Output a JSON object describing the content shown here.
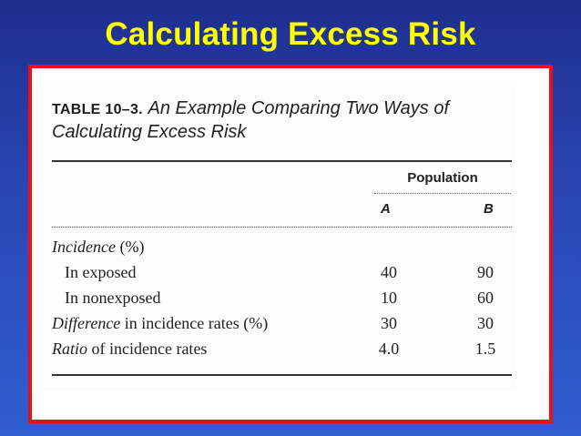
{
  "slide": {
    "title": "Calculating Excess Risk"
  },
  "table": {
    "label": "TABLE 10–3.",
    "caption_line1": "An Example Comparing Two Ways of",
    "caption_line2": "Calculating Excess Risk",
    "group_header": "Population",
    "columns": [
      "A",
      "B"
    ],
    "rows": [
      {
        "label_em": "Incidence",
        "label_rest": " (%)",
        "a": "",
        "b": ""
      },
      {
        "label_em": "",
        "label_rest": "In exposed",
        "a": "40",
        "b": "90"
      },
      {
        "label_em": "",
        "label_rest": "In nonexposed",
        "a": "10",
        "b": "60"
      },
      {
        "label_em": "Difference",
        "label_rest": " in incidence rates (%)",
        "a": "30",
        "b": "30"
      },
      {
        "label_em": "Ratio",
        "label_rest": " of incidence rates",
        "a": "4.0",
        "b": "1.5"
      }
    ]
  }
}
